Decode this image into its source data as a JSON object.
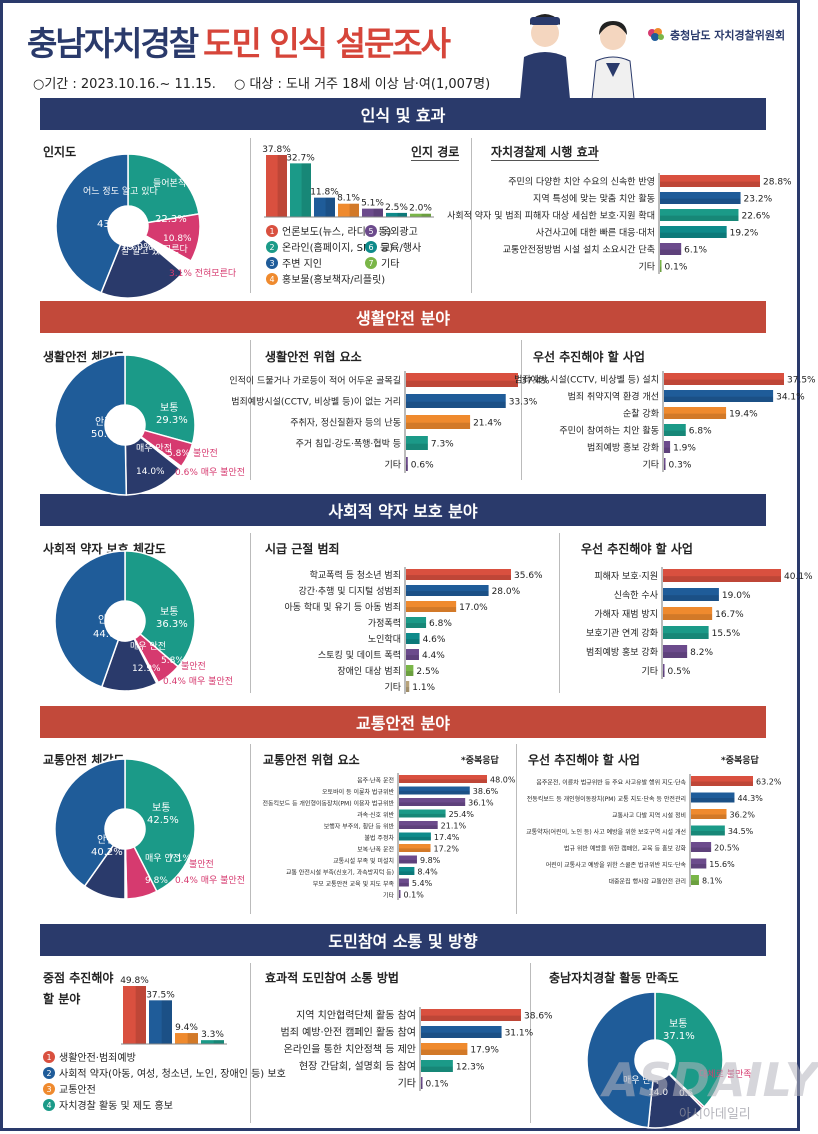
{
  "header": {
    "title_a": "충남자치경찰",
    "title_b": "도민 인식 설문조사",
    "period": "○기간 : 2023.10.16.~ 11.15.",
    "target": "○ 대상 : 도내 거주 18세 이상 남·여(1,007명)",
    "logo_text": "충청남도 자치경찰위원회"
  },
  "sections": [
    {
      "title": "인식 및 효과"
    },
    {
      "title": "생활안전 분야"
    },
    {
      "title": "사회적 약자 보호 분야"
    },
    {
      "title": "교통안전 분야"
    },
    {
      "title": "도민참여 소통 및 방향"
    }
  ],
  "panels": {
    "s1_a": "인지도",
    "s1_b": "인지 경로",
    "s1_c": "자치경찰제 시행 효과",
    "s2_a": "생활안전 체감도",
    "s2_b": "생활안전 위협 요소",
    "s2_c": "우선 추진해야 할 사업",
    "s3_a": "사회적 약자 보호 체감도",
    "s3_b": "시급 근절 범죄",
    "s3_c": "우선 추진해야 할 사업",
    "s4_a": "교통안전 체감도",
    "s4_b": "교통안전 위협 요소",
    "s4_c": "우선 추진해야 할 사업",
    "s5_a1": "중점 추진해야",
    "s5_a2": "할 분야",
    "s5_b": "효과적 도민참여 소통 방법",
    "s5_c": "충남자치경찰 활동 만족도",
    "multi_note": "*중복응답"
  },
  "colors": {
    "red": "#d9503f",
    "blue": "#1f5c99",
    "teal": "#1b9a88",
    "orange": "#ef8a2e",
    "purple": "#6c4b8c",
    "teal2": "#0e8a8a",
    "green": "#7ab648",
    "navy": "#2a3a6b",
    "pink": "#d63a6f",
    "gray": "#888888",
    "tan": "#b8a37a"
  },
  "chart_data": [
    {
      "id": "awareness",
      "type": "pie",
      "labels": [
        "들어본적 있다",
        "모른다",
        "전혀모른다",
        "잘알고 있다",
        "어느 정도 알고 있다"
      ],
      "values": [
        22.3,
        10.8,
        3.1,
        19.9,
        43.9
      ],
      "colors": [
        "#1b9a88",
        "#d63a6f",
        "#ffffff",
        "#2a3a6b",
        "#1f5c99"
      ]
    },
    {
      "id": "recognition_route",
      "type": "bar",
      "categories": [
        "1",
        "2",
        "3",
        "4",
        "5",
        "6",
        "7"
      ],
      "values": [
        37.8,
        32.7,
        11.8,
        8.1,
        5.1,
        2.5,
        2.0
      ],
      "legend": [
        "언론보도(뉴스, 라디오 등)",
        "온라인(홈페이지, SNS 등)",
        "주변 지인",
        "홍보물(홍보책자/리플릿)",
        "옥외광고",
        "교육/행사",
        "기타"
      ],
      "colors": [
        "#d9503f",
        "#1b9a88",
        "#1f5c99",
        "#ef8a2e",
        "#6c4b8c",
        "#0e8a8a",
        "#7ab648"
      ]
    },
    {
      "id": "effect",
      "type": "bar",
      "categories": [
        "주민의 다양한 치안 수요의 신속한 반영",
        "지역 특성에 맞는 맞춤 치안 활동",
        "사회적 약자 및 범죄 피해자 대상 세심한 보호·지원 확대",
        "사건사고에 대한 빠른 대응·대처",
        "교통안전정방범 시설 설치 소요시간 단축",
        "기타"
      ],
      "values": [
        28.8,
        23.2,
        22.6,
        19.2,
        6.1,
        0.1
      ]
    },
    {
      "id": "life_safety_feel",
      "type": "pie",
      "labels": [
        "보통",
        "불안전",
        "매우 불안전",
        "매우 안전",
        "안전"
      ],
      "values": [
        29.3,
        5.8,
        0.6,
        14.0,
        50.3
      ],
      "colors": [
        "#1b9a88",
        "#d63a6f",
        "#ffffff",
        "#2a3a6b",
        "#1f5c99"
      ]
    },
    {
      "id": "life_threats",
      "type": "bar",
      "categories": [
        "인적이 드물거나 가로등이 적어 어두운 골목길",
        "범죄예방시설(CCTV, 비상벨 등)이 없는 거리",
        "주취자, 정신질환자 등의 난동",
        "주거 침입·강도·폭행·협박 등",
        "기타"
      ],
      "values": [
        37.4,
        33.3,
        21.4,
        7.3,
        0.6
      ]
    },
    {
      "id": "life_priority",
      "type": "bar",
      "categories": [
        "범죄예방 시설(CCTV, 비상벨 등) 설치",
        "범죄 취약지역 환경 개선",
        "순찰 강화",
        "주민이 참여하는 치안 활동",
        "범죄예방 홍보 강화",
        "기타"
      ],
      "values": [
        37.5,
        34.1,
        19.4,
        6.8,
        1.9,
        0.3
      ]
    },
    {
      "id": "weak_protect_feel",
      "type": "pie",
      "labels": [
        "보통",
        "불안전",
        "매우 불안전",
        "매우 안전",
        "안전"
      ],
      "values": [
        36.3,
        5.8,
        0.4,
        12.9,
        44.6
      ],
      "colors": [
        "#1b9a88",
        "#d63a6f",
        "#ffffff",
        "#2a3a6b",
        "#1f5c99"
      ]
    },
    {
      "id": "urgent_crimes",
      "type": "bar",
      "categories": [
        "학교폭력 등 청소년 범죄",
        "강간·추행 및 디지털 성범죄",
        "아동 학대 및 유기 등 아동 범죄",
        "가정폭력",
        "노인학대",
        "스토킹 및 데이트 폭력",
        "장애인 대상 범죄",
        "기타"
      ],
      "values": [
        35.6,
        28.0,
        17.0,
        6.8,
        4.6,
        4.4,
        2.5,
        1.1
      ]
    },
    {
      "id": "weak_priority",
      "type": "bar",
      "categories": [
        "피해자 보호·지원",
        "신속한 수사",
        "가해자 재범 방지",
        "보호기관 연계 강화",
        "범죄예방 홍보 강화",
        "기타"
      ],
      "values": [
        40.1,
        19.0,
        16.7,
        15.5,
        8.2,
        0.5
      ]
    },
    {
      "id": "traffic_feel",
      "type": "pie",
      "labels": [
        "보통",
        "불안전",
        "매우 불안전",
        "매우 안전",
        "안전"
      ],
      "values": [
        42.5,
        7.1,
        0.4,
        9.8,
        40.2
      ],
      "colors": [
        "#1b9a88",
        "#d63a6f",
        "#ffffff",
        "#2a3a6b",
        "#1f5c99"
      ]
    },
    {
      "id": "traffic_threats",
      "type": "bar",
      "categories": [
        "음주·난폭 운전",
        "오토바이 등 이륜차 법규위반",
        "전동킥보드 등 개인형이동장치(PM) 이용자 법규위반",
        "과속·신호 위반",
        "보행자 부주의, 횡단 등 위반",
        "불법 주정차",
        "보복·난폭 운전",
        "교통시설 부족 및 미설치",
        "교통 안전시설 부족(신호기, 과속방지턱 등)",
        "부모 교통안전 교육 및 지도 부족",
        "기타"
      ],
      "values": [
        48.0,
        38.6,
        36.1,
        25.4,
        21.1,
        17.4,
        17.2,
        9.8,
        8.4,
        5.4,
        0.1
      ]
    },
    {
      "id": "traffic_priority",
      "type": "bar",
      "categories": [
        "음주운전, 이륜차 법규위반 등 주요 사고유발 행위 지도·단속",
        "전동킥보드 등 개인형이동장치(PM) 교통 지도·단속 등 안전관리",
        "교통사고 다발 지역 시설 정비",
        "교통약자(어린이, 노인 등) 사고 예방을 위한 보호구역 시설 개선",
        "법규 위반 예방을 위한 캠페인, 교육 등 홍보 강화",
        "어린이 교통사고 예방을 위한 스쿨존 법규위반 지도·단속",
        "대중운집 행사장 교통안전 관리"
      ],
      "values": [
        63.2,
        44.3,
        36.2,
        34.5,
        20.5,
        15.6,
        8.1
      ]
    },
    {
      "id": "focus_area",
      "type": "bar",
      "categories": [
        "1",
        "2",
        "3",
        "4"
      ],
      "values": [
        49.8,
        37.5,
        9.4,
        3.3
      ],
      "legend": [
        "생활안전·범죄예방",
        "사회적 약자(아동, 여성, 청소년, 노인, 장애인 등) 보호",
        "교통안전",
        "자치경찰 활동 및 제도 홍보"
      ]
    },
    {
      "id": "participation",
      "type": "bar",
      "categories": [
        "지역 치안협력단체 활동 참여",
        "범죄 예방·안전 캠페인 활동 참여",
        "온라인을 통한 치안정책 등 제안",
        "현장 간담회, 설명회 등 참여",
        "기타"
      ],
      "values": [
        38.6,
        31.1,
        17.9,
        12.3,
        0.1
      ]
    },
    {
      "id": "satisfaction",
      "type": "pie",
      "labels": [
        "보통",
        "대체로 불만족",
        "매우 만족",
        "대체로 만족"
      ],
      "values": [
        37.1,
        0.5,
        14.0,
        48.4
      ],
      "visible_labels": {
        "보통": "보통 37.1%",
        "대체로 불만족": "대체로 불만족",
        "매우 만족": "매우 만족 14.0",
        "기타": "0.5"
      }
    }
  ],
  "labels": {
    "aw_22": "들어본적 있다",
    "aw_22v": "22.3%",
    "aw_43": "어느 정도 알고 있다",
    "aw_43v": "43.9%",
    "aw_19": "잘 알고 있다",
    "aw_19v": "19.9%",
    "aw_10": "모른다",
    "aw_10v": "10.8%",
    "aw_3": "3.1% 전혀모른다",
    "ls_29": "보통",
    "ls_29v": "29.3%",
    "ls_50": "안전",
    "ls_50v": "50.3%",
    "ls_14": "매우 안전",
    "ls_14v": "14.0%",
    "ls_5": "5.8%",
    "ls_5t": "불안전",
    "ls_0": "0.6% 매우 불안전",
    "wp_36": "보통",
    "wp_36v": "36.3%",
    "wp_44": "안전",
    "wp_44v": "44.6%",
    "wp_12": "매우 안전",
    "wp_12v": "12.9%",
    "wp_5": "5.8%",
    "wp_5t": "불안전",
    "wp_0": "0.4% 매우 불안전",
    "tr_42": "보통",
    "tr_42v": "42.5%",
    "tr_40": "안전",
    "tr_40v": "40.2%",
    "tr_9": "매우 안전",
    "tr_9v": "9.8%",
    "tr_7": "7.1%",
    "tr_7t": "불안전",
    "tr_0": "0.4% 매우 불안전",
    "sat_37": "보통",
    "sat_37v": "37.1%",
    "sat_u": "대체로 불만족",
    "sat_14": "14.0",
    "sat_05": "0.5",
    "sat_m": "매우 만족",
    "water": "ASDAILY",
    "water2": "아시아데일리"
  }
}
